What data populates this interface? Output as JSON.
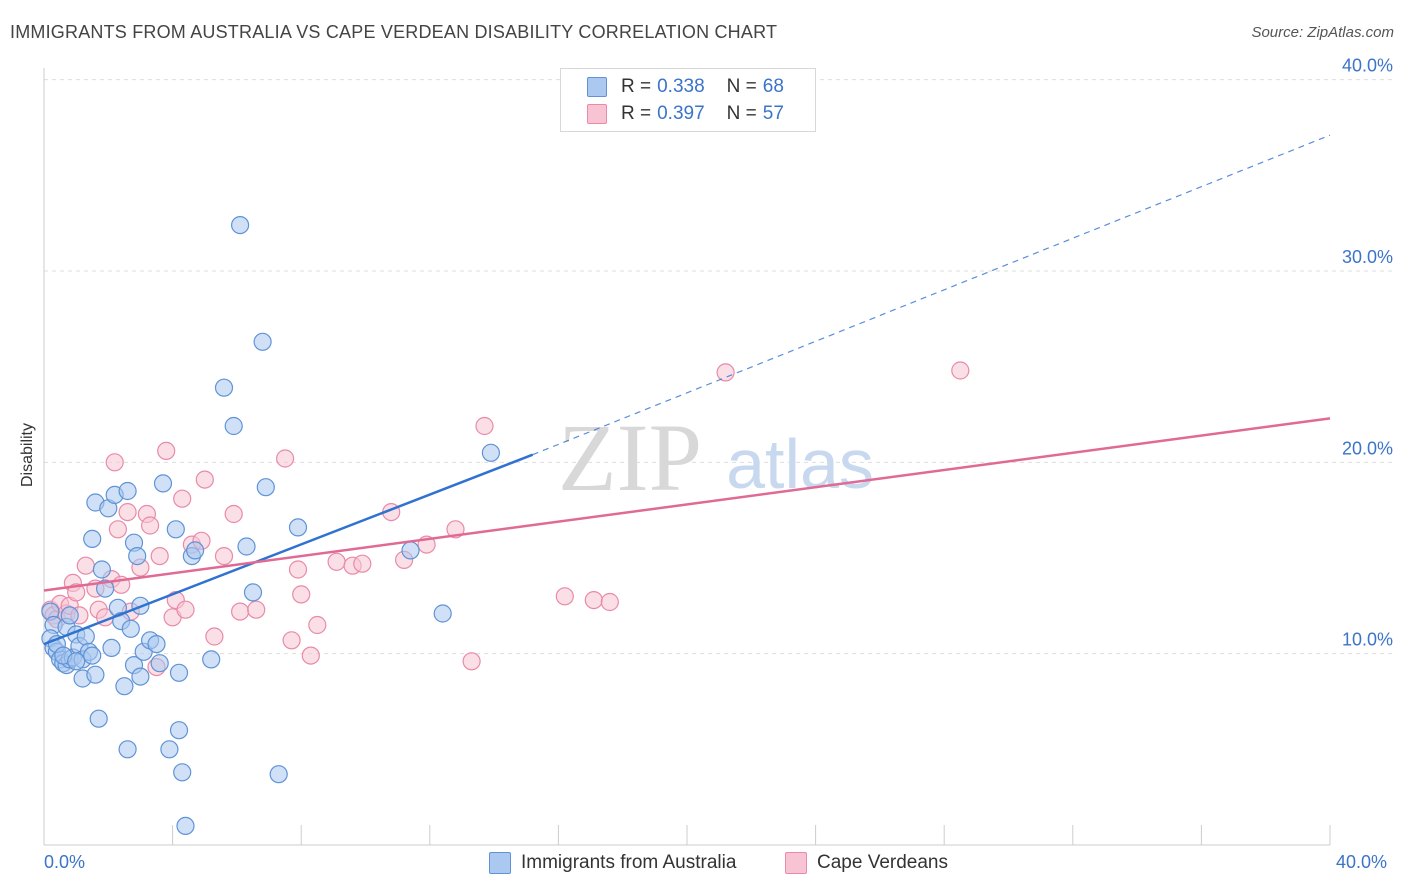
{
  "header": {
    "title": "IMMIGRANTS FROM AUSTRALIA VS CAPE VERDEAN DISABILITY CORRELATION CHART",
    "source": "Source: ZipAtlas.com"
  },
  "watermark": {
    "zip": "ZIP",
    "atlas": "atlas"
  },
  "legend": {
    "rows": [
      {
        "r_label": "R = ",
        "r_value": "0.338",
        "n_label": "N = ",
        "n_value": "68"
      },
      {
        "r_label": "R = ",
        "r_value": "0.397",
        "n_label": "N = ",
        "n_value": "57"
      }
    ]
  },
  "colors": {
    "blue_fill": "#aac8f0",
    "blue_stroke": "#5f93d6",
    "blue_line": "#2f72d0",
    "pink_fill": "#f8c4d4",
    "pink_stroke": "#e98aa8",
    "pink_line": "#e06a94",
    "axis_label": "#3b74c8",
    "grid": "#dddddd"
  },
  "chart_data": {
    "type": "scatter",
    "title": "IMMIGRANTS FROM AUSTRALIA VS CAPE VERDEAN DISABILITY CORRELATION CHART",
    "xlabel": "",
    "ylabel": "Disability",
    "xlim": [
      0,
      40
    ],
    "ylim": [
      0,
      41
    ],
    "x_tick_labels": [
      "0.0%",
      "40.0%"
    ],
    "y_ticks": [
      10,
      20,
      30,
      40
    ],
    "y_tick_labels": [
      "10.0%",
      "20.0%",
      "30.0%",
      "40.0%"
    ],
    "grid": true,
    "series": [
      {
        "name": "Immigrants from Australia",
        "color": "blue",
        "trend": {
          "x": [
            0,
            15.2
          ],
          "y": [
            10.5,
            20.4
          ],
          "dashed_extension": {
            "x": [
              15.2,
              40
            ],
            "y": [
              20.4,
              37.1
            ]
          }
        },
        "points": [
          [
            0.2,
            12.2
          ],
          [
            0.3,
            11.5
          ],
          [
            0.2,
            10.8
          ],
          [
            0.3,
            10.3
          ],
          [
            0.4,
            10.1
          ],
          [
            0.5,
            9.7
          ],
          [
            0.6,
            9.5
          ],
          [
            0.7,
            9.4
          ],
          [
            0.8,
            9.7
          ],
          [
            0.9,
            9.8
          ],
          [
            0.7,
            11.4
          ],
          [
            0.8,
            12.0
          ],
          [
            1.0,
            11.0
          ],
          [
            1.1,
            10.4
          ],
          [
            1.2,
            9.7
          ],
          [
            1.2,
            8.7
          ],
          [
            1.3,
            10.9
          ],
          [
            1.4,
            10.1
          ],
          [
            1.5,
            9.9
          ],
          [
            1.6,
            8.9
          ],
          [
            1.5,
            16.0
          ],
          [
            1.6,
            17.9
          ],
          [
            1.8,
            14.4
          ],
          [
            1.9,
            13.4
          ],
          [
            2.0,
            17.6
          ],
          [
            2.1,
            10.3
          ],
          [
            2.2,
            18.3
          ],
          [
            2.3,
            12.4
          ],
          [
            2.4,
            11.7
          ],
          [
            2.5,
            8.3
          ],
          [
            2.6,
            18.5
          ],
          [
            2.7,
            11.3
          ],
          [
            2.8,
            15.8
          ],
          [
            2.8,
            9.4
          ],
          [
            2.9,
            15.1
          ],
          [
            3.0,
            8.8
          ],
          [
            3.1,
            10.1
          ],
          [
            3.3,
            10.7
          ],
          [
            3.5,
            10.5
          ],
          [
            3.6,
            9.5
          ],
          [
            3.7,
            18.9
          ],
          [
            4.1,
            16.5
          ],
          [
            4.2,
            9.0
          ],
          [
            4.3,
            3.8
          ],
          [
            4.4,
            1.0
          ],
          [
            4.6,
            15.1
          ],
          [
            4.7,
            15.4
          ],
          [
            5.2,
            9.7
          ],
          [
            5.6,
            23.9
          ],
          [
            5.9,
            21.9
          ],
          [
            6.1,
            32.4
          ],
          [
            6.3,
            15.6
          ],
          [
            6.5,
            13.2
          ],
          [
            6.8,
            26.3
          ],
          [
            6.9,
            18.7
          ],
          [
            7.3,
            3.7
          ],
          [
            7.9,
            16.6
          ],
          [
            11.4,
            15.4
          ],
          [
            12.4,
            12.1
          ],
          [
            13.9,
            20.5
          ],
          [
            1.7,
            6.6
          ],
          [
            2.6,
            5.0
          ],
          [
            3.9,
            5.0
          ],
          [
            4.2,
            6.0
          ],
          [
            0.4,
            10.5
          ],
          [
            0.6,
            9.9
          ],
          [
            1.0,
            9.6
          ],
          [
            3.0,
            12.5
          ]
        ]
      },
      {
        "name": "Cape Verdeans",
        "color": "pink",
        "trend": {
          "x": [
            0,
            40
          ],
          "y": [
            13.3,
            22.3
          ]
        },
        "points": [
          [
            0.2,
            12.3
          ],
          [
            0.3,
            12.0
          ],
          [
            0.4,
            11.8
          ],
          [
            0.5,
            12.6
          ],
          [
            0.7,
            12.1
          ],
          [
            0.8,
            12.5
          ],
          [
            0.9,
            13.7
          ],
          [
            1.0,
            13.2
          ],
          [
            1.1,
            12.0
          ],
          [
            1.3,
            14.6
          ],
          [
            1.6,
            13.4
          ],
          [
            1.7,
            12.3
          ],
          [
            1.9,
            11.9
          ],
          [
            2.1,
            13.9
          ],
          [
            2.2,
            20.0
          ],
          [
            2.3,
            16.5
          ],
          [
            2.4,
            13.6
          ],
          [
            2.6,
            17.4
          ],
          [
            2.7,
            12.2
          ],
          [
            3.0,
            14.5
          ],
          [
            3.2,
            17.3
          ],
          [
            3.3,
            16.7
          ],
          [
            3.5,
            9.3
          ],
          [
            3.6,
            15.1
          ],
          [
            3.8,
            20.6
          ],
          [
            4.0,
            11.9
          ],
          [
            4.1,
            12.8
          ],
          [
            4.3,
            18.1
          ],
          [
            4.4,
            12.3
          ],
          [
            4.6,
            15.7
          ],
          [
            4.9,
            15.9
          ],
          [
            5.0,
            19.1
          ],
          [
            5.3,
            10.9
          ],
          [
            5.6,
            15.1
          ],
          [
            5.9,
            17.3
          ],
          [
            6.1,
            12.2
          ],
          [
            6.6,
            12.3
          ],
          [
            7.5,
            20.2
          ],
          [
            7.7,
            10.7
          ],
          [
            7.9,
            14.4
          ],
          [
            8.0,
            13.1
          ],
          [
            8.3,
            9.9
          ],
          [
            8.5,
            11.5
          ],
          [
            9.1,
            14.8
          ],
          [
            9.6,
            14.6
          ],
          [
            9.9,
            14.7
          ],
          [
            10.8,
            17.4
          ],
          [
            11.2,
            14.9
          ],
          [
            11.9,
            15.7
          ],
          [
            12.8,
            16.5
          ],
          [
            13.3,
            9.6
          ],
          [
            13.7,
            21.9
          ],
          [
            16.2,
            13.0
          ],
          [
            17.1,
            12.8
          ],
          [
            17.6,
            12.7
          ],
          [
            21.2,
            24.7
          ],
          [
            28.5,
            24.8
          ]
        ]
      }
    ]
  },
  "bottom_legend": {
    "items": [
      {
        "label": "Immigrants from Australia"
      },
      {
        "label": "Cape Verdeans"
      }
    ]
  }
}
